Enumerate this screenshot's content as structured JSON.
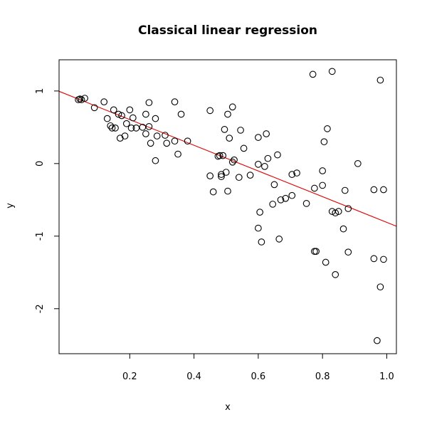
{
  "chart_data": {
    "type": "scatter",
    "title": "Classical linear regression",
    "xlabel": "x",
    "ylabel": "y",
    "xlim": [
      -0.02,
      1.03
    ],
    "ylim": [
      -2.62,
      1.43
    ],
    "xticks": [
      0.2,
      0.4,
      0.6,
      0.8,
      1.0
    ],
    "xtick_labels": [
      "0.2",
      "0.4",
      "0.6",
      "0.8",
      "1.0"
    ],
    "yticks": [
      -2,
      -1,
      0,
      1
    ],
    "ytick_labels": [
      "-2",
      "-1",
      "0",
      "1"
    ],
    "grid": false,
    "marker": "open-circle",
    "point_color": "#000000",
    "line_color": "#e00000",
    "fit_line": {
      "intercept": 0.96,
      "slope": -1.77
    },
    "points": [
      [
        0.04,
        0.88
      ],
      [
        0.045,
        0.89
      ],
      [
        0.05,
        0.88
      ],
      [
        0.06,
        0.9
      ],
      [
        0.09,
        0.77
      ],
      [
        0.12,
        0.85
      ],
      [
        0.13,
        0.62
      ],
      [
        0.14,
        0.52
      ],
      [
        0.145,
        0.49
      ],
      [
        0.15,
        0.74
      ],
      [
        0.155,
        0.49
      ],
      [
        0.165,
        0.68
      ],
      [
        0.17,
        0.35
      ],
      [
        0.175,
        0.66
      ],
      [
        0.185,
        0.38
      ],
      [
        0.19,
        0.55
      ],
      [
        0.2,
        0.74
      ],
      [
        0.205,
        0.49
      ],
      [
        0.21,
        0.63
      ],
      [
        0.22,
        0.49
      ],
      [
        0.24,
        0.5
      ],
      [
        0.25,
        0.68
      ],
      [
        0.25,
        0.41
      ],
      [
        0.26,
        0.51
      ],
      [
        0.26,
        0.84
      ],
      [
        0.265,
        0.28
      ],
      [
        0.28,
        0.62
      ],
      [
        0.28,
        0.04
      ],
      [
        0.285,
        0.38
      ],
      [
        0.31,
        0.39
      ],
      [
        0.315,
        0.28
      ],
      [
        0.34,
        0.85
      ],
      [
        0.34,
        0.31
      ],
      [
        0.35,
        0.13
      ],
      [
        0.36,
        0.68
      ],
      [
        0.38,
        0.31
      ],
      [
        0.45,
        0.73
      ],
      [
        0.45,
        -0.17
      ],
      [
        0.46,
        -0.39
      ],
      [
        0.475,
        0.1
      ],
      [
        0.48,
        0.11
      ],
      [
        0.485,
        -0.15
      ],
      [
        0.485,
        -0.18
      ],
      [
        0.49,
        0.11
      ],
      [
        0.495,
        0.47
      ],
      [
        0.5,
        -0.12
      ],
      [
        0.505,
        0.68
      ],
      [
        0.505,
        -0.38
      ],
      [
        0.51,
        0.35
      ],
      [
        0.52,
        0.78
      ],
      [
        0.52,
        0.02
      ],
      [
        0.525,
        0.05
      ],
      [
        0.54,
        -0.19
      ],
      [
        0.545,
        0.46
      ],
      [
        0.555,
        0.21
      ],
      [
        0.575,
        -0.16
      ],
      [
        0.6,
        0.36
      ],
      [
        0.6,
        -0.01
      ],
      [
        0.6,
        -0.89
      ],
      [
        0.605,
        -0.67
      ],
      [
        0.61,
        -1.08
      ],
      [
        0.62,
        -0.04
      ],
      [
        0.625,
        0.41
      ],
      [
        0.63,
        0.07
      ],
      [
        0.645,
        -0.56
      ],
      [
        0.65,
        -0.29
      ],
      [
        0.66,
        0.12
      ],
      [
        0.665,
        -1.04
      ],
      [
        0.67,
        -0.5
      ],
      [
        0.685,
        -0.48
      ],
      [
        0.705,
        -0.15
      ],
      [
        0.705,
        -0.44
      ],
      [
        0.72,
        -0.13
      ],
      [
        0.75,
        -0.55
      ],
      [
        0.77,
        1.23
      ],
      [
        0.775,
        -1.21
      ],
      [
        0.775,
        -0.34
      ],
      [
        0.78,
        -1.21
      ],
      [
        0.8,
        -0.1
      ],
      [
        0.8,
        -0.3
      ],
      [
        0.805,
        0.3
      ],
      [
        0.81,
        -1.36
      ],
      [
        0.815,
        0.48
      ],
      [
        0.83,
        1.27
      ],
      [
        0.83,
        -0.66
      ],
      [
        0.84,
        -0.68
      ],
      [
        0.84,
        -1.53
      ],
      [
        0.85,
        -0.66
      ],
      [
        0.865,
        -0.9
      ],
      [
        0.87,
        -0.37
      ],
      [
        0.88,
        -0.62
      ],
      [
        0.88,
        -1.22
      ],
      [
        0.91,
        0.0
      ],
      [
        0.96,
        -0.36
      ],
      [
        0.96,
        -1.31
      ],
      [
        0.97,
        -2.44
      ],
      [
        0.98,
        1.15
      ],
      [
        0.98,
        -1.7
      ],
      [
        0.99,
        -0.36
      ],
      [
        0.99,
        -1.32
      ]
    ]
  }
}
